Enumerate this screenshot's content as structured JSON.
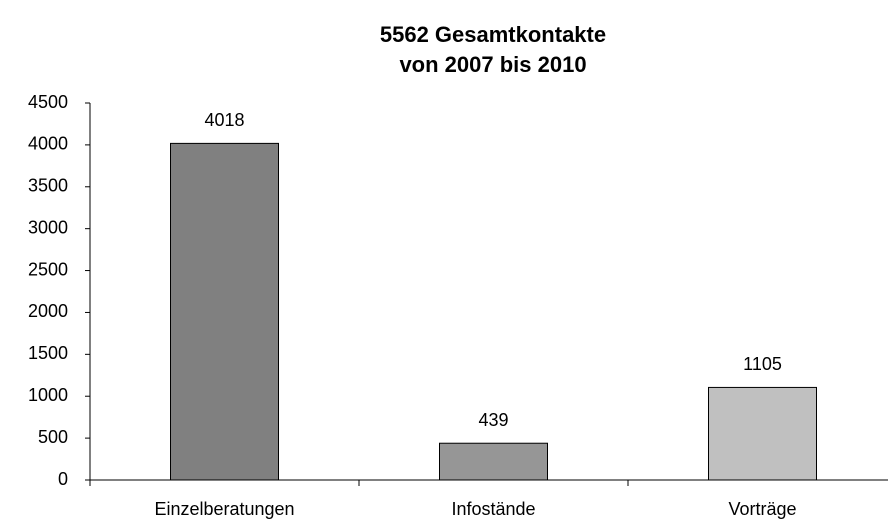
{
  "chart_data": {
    "type": "bar",
    "title": [
      "5562 Gesamtkontakte",
      "von 2007 bis 2010"
    ],
    "categories": [
      "Einzelberatungen",
      "Infostände",
      "Vorträge"
    ],
    "values": [
      4018,
      439,
      1105
    ],
    "colors": [
      "#808080",
      "#969696",
      "#c0c0c0"
    ],
    "ylim": [
      0,
      4500
    ],
    "yticks": [
      0,
      500,
      1000,
      1500,
      2000,
      2500,
      3000,
      3500,
      4000,
      4500
    ],
    "grid": false
  }
}
